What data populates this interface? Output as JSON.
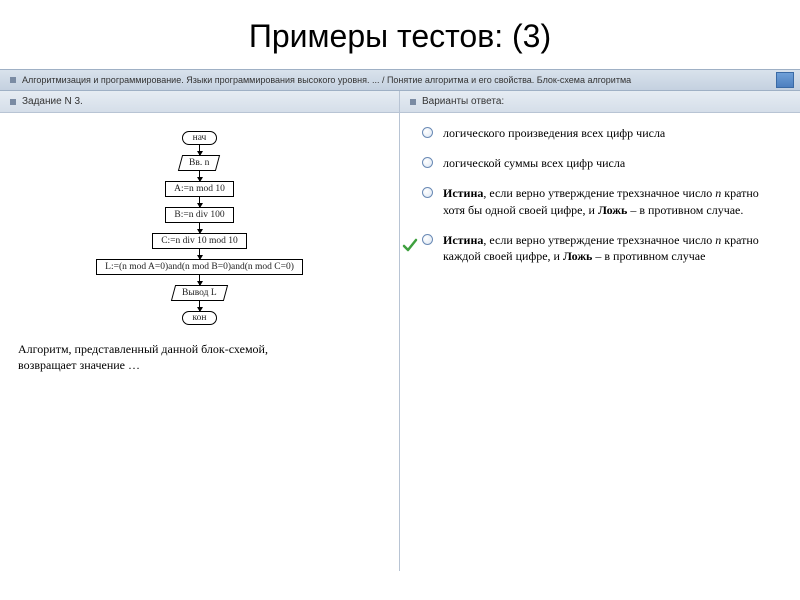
{
  "title": "Примеры тестов: (3)",
  "breadcrumb": "Алгоритмизация и программирование. Языки программирования высокого уровня. ... / Понятие алгоритма и его свойства. Блок-схема алгоритма",
  "left": {
    "header": "Задание N 3.",
    "nodes": {
      "start": "нач",
      "input": "Вв. n",
      "a": "A:=n mod 10",
      "b": "B:=n div 100",
      "c": "C:=n div 10 mod 10",
      "l": "L:=(n mod A=0)and(n mod B=0)and(n mod C=0)",
      "output": "Вывод L",
      "end": "кон"
    },
    "question": "Алгоритм, представленный данной блок-схемой, возвращает значение …"
  },
  "right": {
    "header": "Варианты ответа:",
    "answers": [
      {
        "text": "логического произведения всех цифр числа",
        "selected": false
      },
      {
        "text": "логической суммы всех цифр числа",
        "selected": false
      },
      {
        "html": "<span class='bold'>Истина</span>, если верно утверждение трехзначное число <span class='ital'>n</span> кратно хотя бы одной своей цифре, и <span class='bold'>Ложь</span> – в противном случае.",
        "selected": false
      },
      {
        "html": "<span class='bold'>Истина</span>, если верно утверждение трехзначное число <span class='ital'>n</span> кратно каждой своей цифре, и <span class='bold'>Ложь</span> – в противном случае",
        "selected": true
      }
    ]
  },
  "colors": {
    "check": "#3fa03f"
  }
}
